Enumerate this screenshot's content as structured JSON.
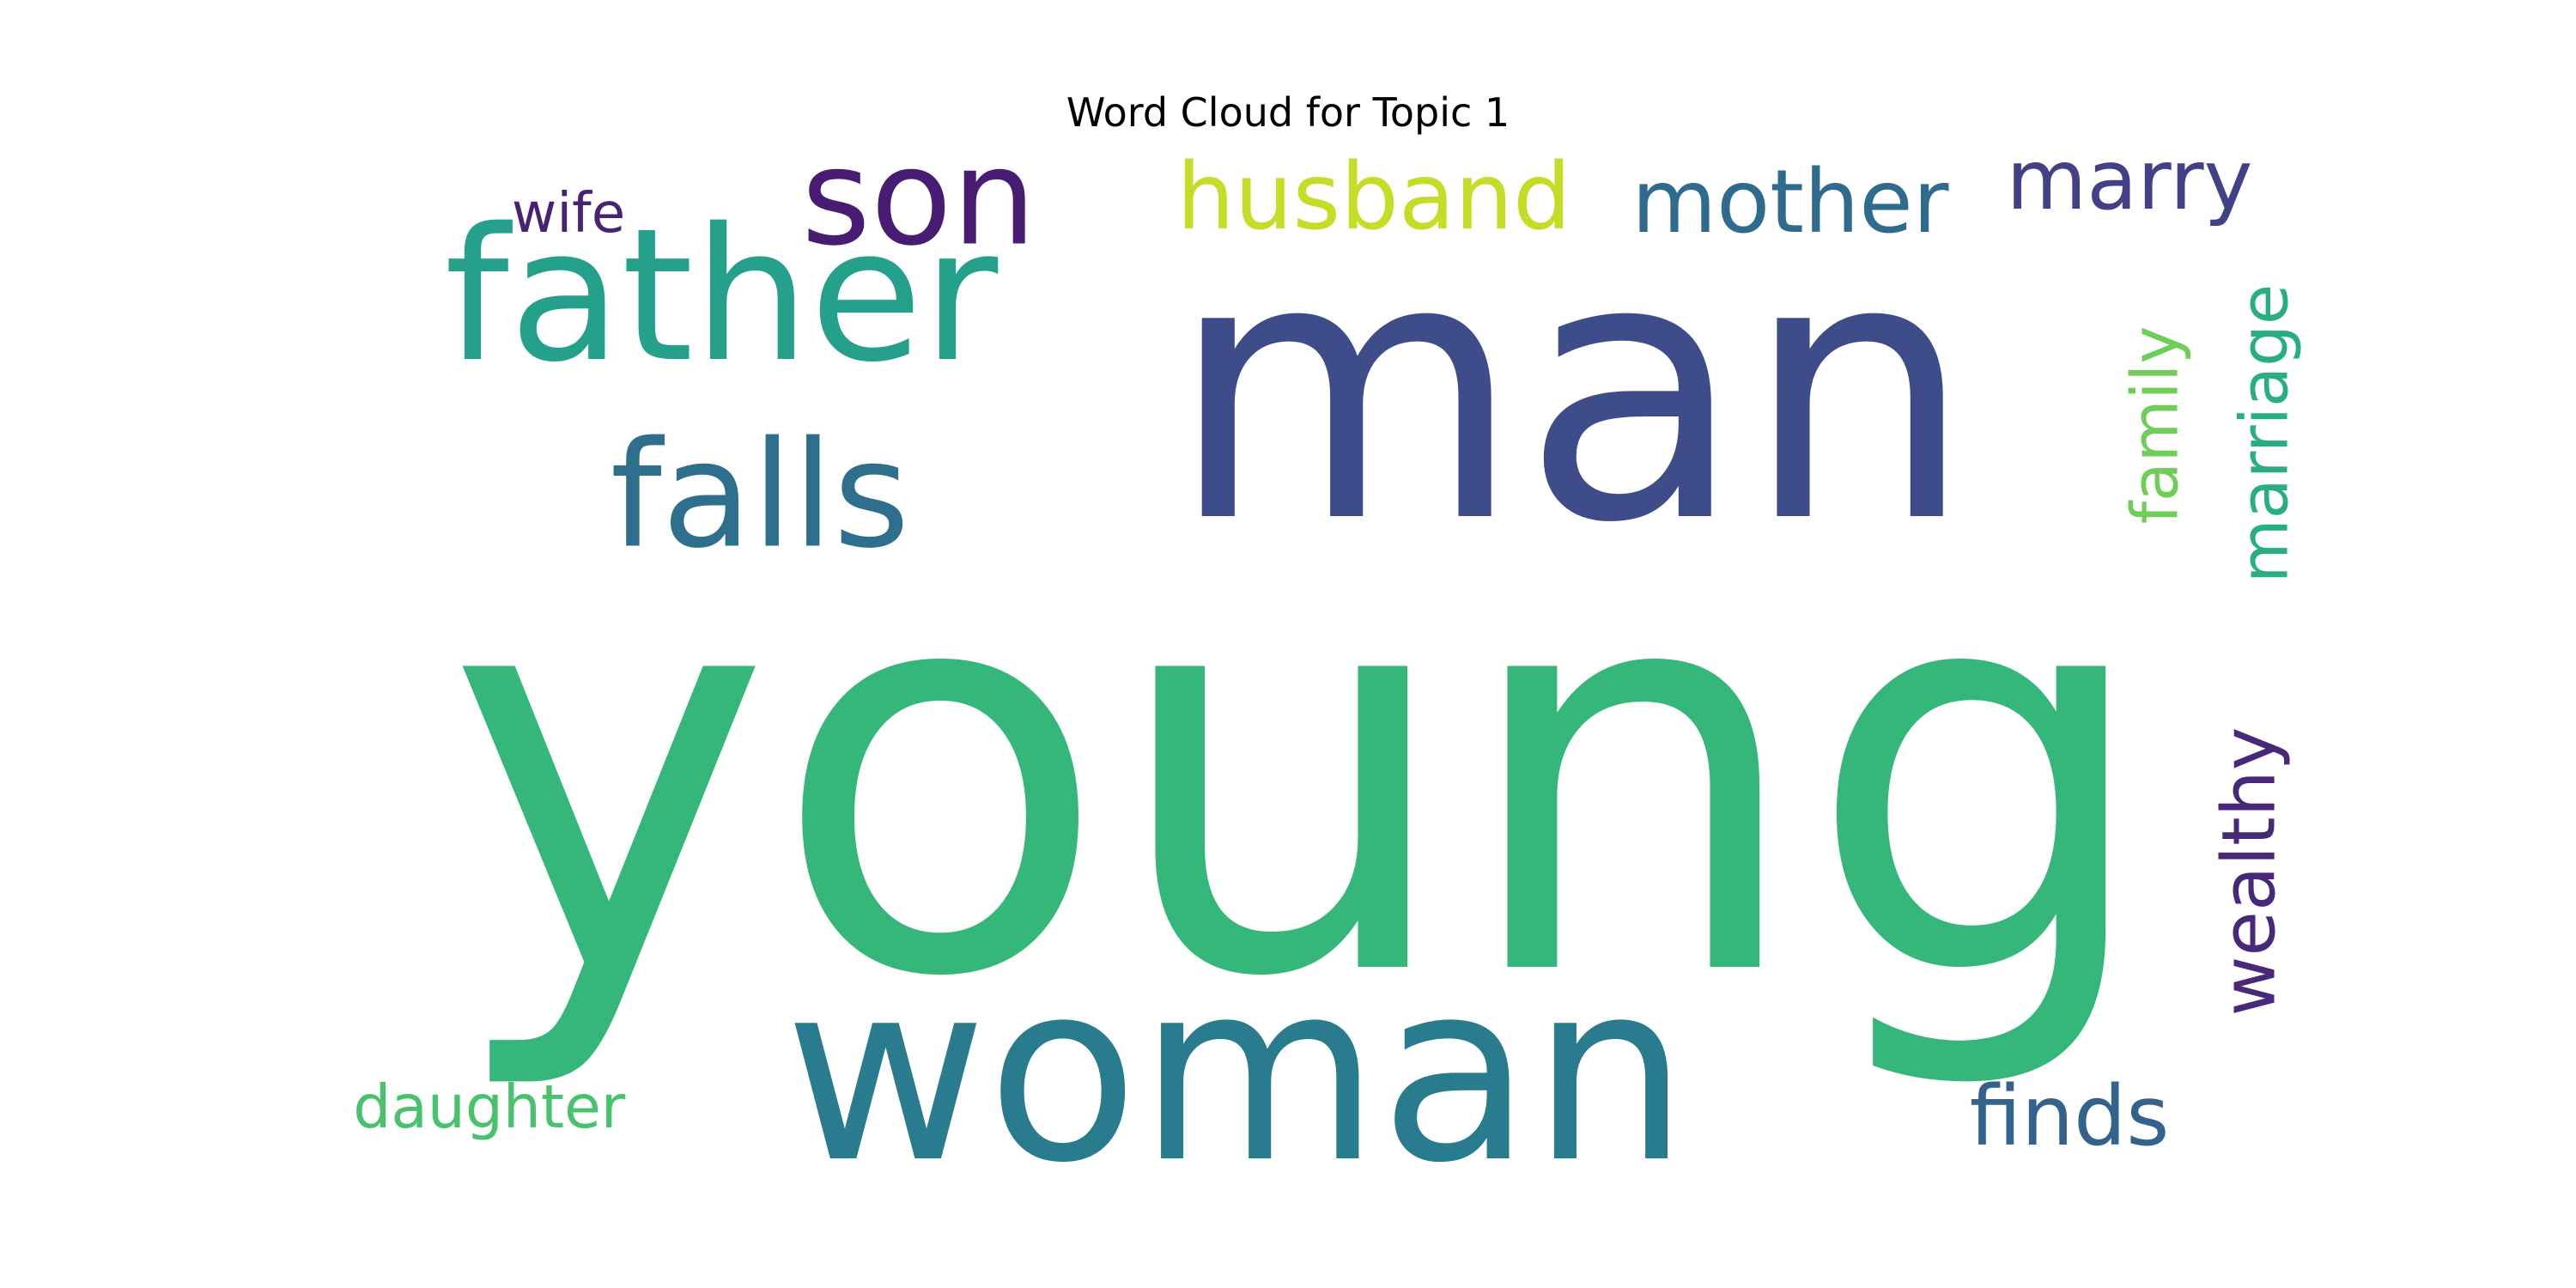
{
  "chart_data": {
    "type": "word_cloud",
    "title": "Word Cloud for Topic 1",
    "words": [
      {
        "text": "young",
        "color": "#35b779",
        "rotated": false
      },
      {
        "text": "man",
        "color": "#3e4c8a",
        "rotated": false
      },
      {
        "text": "woman",
        "color": "#297b8e",
        "rotated": false
      },
      {
        "text": "father",
        "color": "#25a08a",
        "rotated": false
      },
      {
        "text": "falls",
        "color": "#2e6f8e",
        "rotated": false
      },
      {
        "text": "son",
        "color": "#471c72",
        "rotated": false
      },
      {
        "text": "husband",
        "color": "#c5dd26",
        "rotated": false
      },
      {
        "text": "mother",
        "color": "#2f6b8e",
        "rotated": false
      },
      {
        "text": "marry",
        "color": "#424086",
        "rotated": false
      },
      {
        "text": "wife",
        "color": "#482374",
        "rotated": false
      },
      {
        "text": "family",
        "color": "#6ece58",
        "rotated": true
      },
      {
        "text": "marriage",
        "color": "#28ae80",
        "rotated": true
      },
      {
        "text": "wealthy",
        "color": "#482878",
        "rotated": true
      },
      {
        "text": "daughter",
        "color": "#4ac16d",
        "rotated": false
      },
      {
        "text": "finds",
        "color": "#33638d",
        "rotated": false
      }
    ]
  }
}
